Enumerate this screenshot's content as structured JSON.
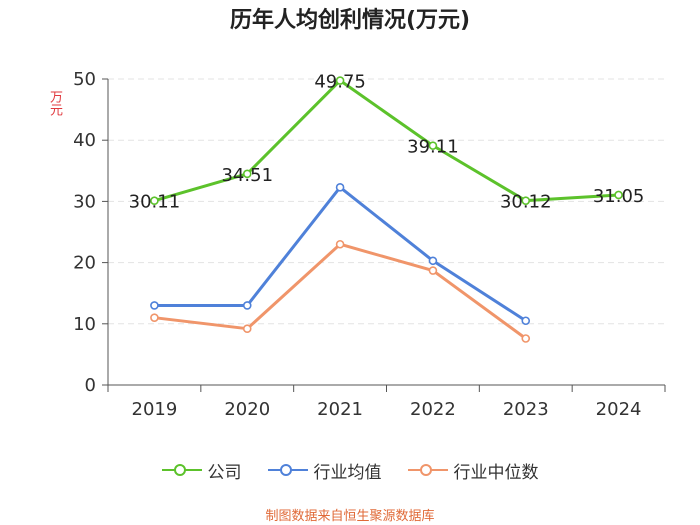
{
  "chart_data": {
    "type": "line",
    "title": "历年人均创利情况(万元)",
    "ylabel": "万元",
    "xlabel": "",
    "categories": [
      "2019",
      "2020",
      "2021",
      "2022",
      "2023",
      "2024"
    ],
    "ylim": [
      0,
      50
    ],
    "yticks": [
      0,
      10,
      20,
      30,
      40,
      50
    ],
    "series": [
      {
        "name": "公司",
        "color": "#5cc22b",
        "show_labels": true,
        "values": [
          30.11,
          34.51,
          49.75,
          39.11,
          30.12,
          31.05
        ],
        "labels": [
          "30.11",
          "34.51",
          "49.75",
          "39.11",
          "30.12",
          "31.05"
        ]
      },
      {
        "name": "行业均值",
        "color": "#4f81d9",
        "show_labels": false,
        "values": [
          13.0,
          13.0,
          32.3,
          20.3,
          10.5,
          null
        ]
      },
      {
        "name": "行业中位数",
        "color": "#f0956a",
        "show_labels": false,
        "values": [
          11.0,
          9.2,
          23.0,
          18.7,
          7.6,
          null
        ]
      }
    ]
  },
  "source": "制图数据来自恒生聚源数据库"
}
